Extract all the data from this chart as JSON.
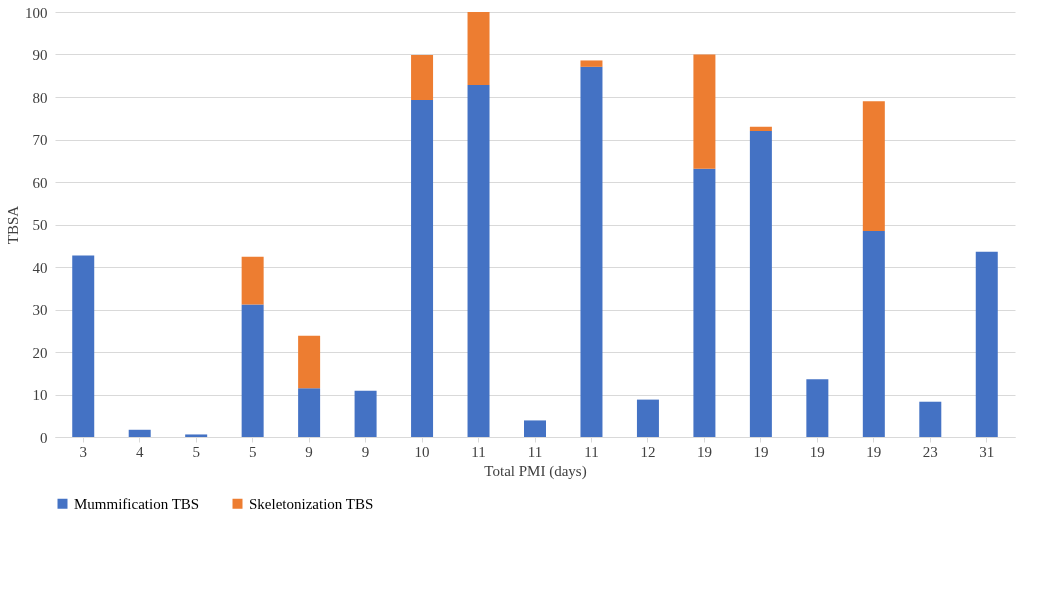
{
  "chart_data": {
    "type": "bar",
    "stacked": true,
    "xlabel": "Total PMI (days)",
    "ylabel": "TBSA",
    "categories": [
      "3",
      "4",
      "5",
      "5",
      "9",
      "9",
      "10",
      "11",
      "11",
      "11",
      "12",
      "19",
      "19",
      "19",
      "19",
      "23",
      "31"
    ],
    "series": [
      {
        "name": "Mummification TBS",
        "color": "#4472c4",
        "values": [
          42.7,
          1.7,
          0.6,
          31.2,
          11.5,
          10.9,
          79.3,
          82.8,
          3.9,
          87.1,
          8.8,
          63.1,
          72,
          13.6,
          48.5,
          8.3,
          43.6
        ]
      },
      {
        "name": "Skeletonization TBS",
        "color": "#ed7d31",
        "values": [
          null,
          null,
          null,
          11.2,
          12.3,
          null,
          10.6,
          17.2,
          null,
          1.5,
          null,
          26.9,
          1,
          null,
          30.5,
          null,
          null
        ]
      }
    ],
    "ylim": [
      0,
      100
    ],
    "yticks": [
      0,
      10,
      20,
      30,
      40,
      50,
      60,
      70,
      80,
      90,
      100
    ],
    "grid": "y",
    "legend": "bottom"
  }
}
